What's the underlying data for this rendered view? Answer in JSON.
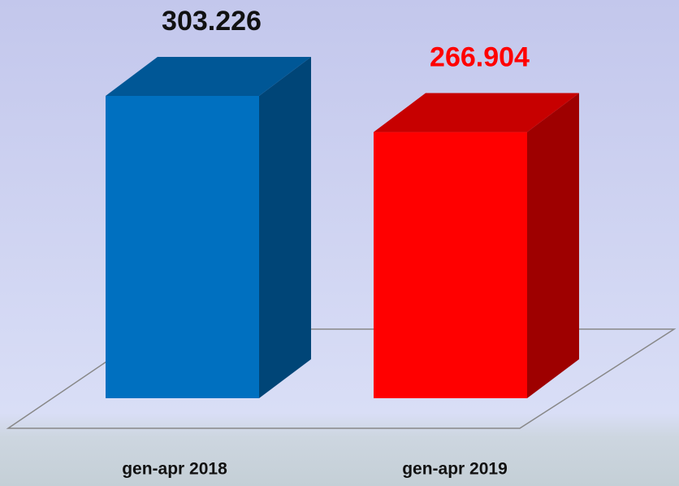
{
  "chart_data": {
    "type": "bar3d",
    "categories": [
      "gen-apr 2018",
      "gen-apr 2019"
    ],
    "values": [
      303226,
      266904
    ],
    "value_labels": [
      "303.226",
      "266.904"
    ],
    "colors": [
      "#0070c0",
      "#ff0000"
    ],
    "label_colors": [
      "#111111",
      "#ff0000"
    ]
  }
}
